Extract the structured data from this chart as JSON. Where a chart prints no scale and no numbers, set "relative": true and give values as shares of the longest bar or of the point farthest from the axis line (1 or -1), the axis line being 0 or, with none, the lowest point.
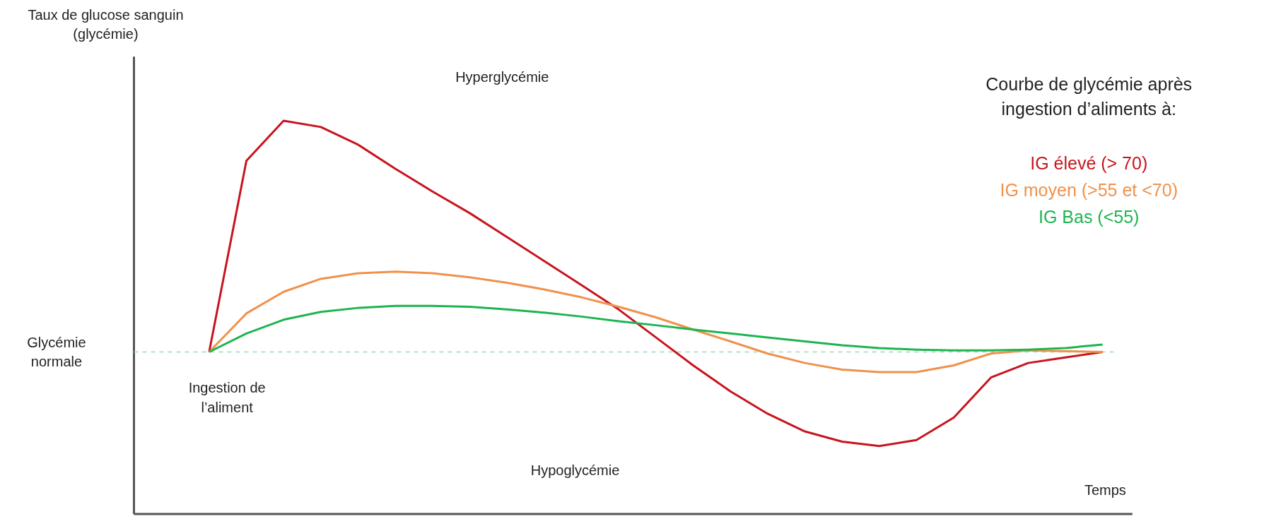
{
  "chart_data": {
    "type": "line",
    "relative": true,
    "xlabel": "Temps",
    "legend_title": "Courbe de glycémie après ingestion d’aliments à:",
    "legend": "top right",
    "grid": false,
    "marker": "none",
    "line_style": "solid",
    "categories": [
      null,
      null,
      null,
      null,
      null,
      null,
      null,
      null,
      null,
      null,
      null,
      null,
      null,
      null,
      null,
      null,
      null,
      null,
      null,
      null,
      null,
      null,
      null,
      null,
      null
    ],
    "series": [
      {
        "name": "IG élevé (> 70)",
        "color": "#c8141e",
        "values": [
          0.412,
          0.898,
          1,
          0.984,
          0.939,
          0.878,
          0.82,
          0.765,
          0.704,
          0.643,
          0.582,
          0.52,
          0.449,
          0.378,
          0.312,
          0.255,
          0.21,
          0.184,
          0.173,
          0.188,
          0.245,
          0.347,
          0.384,
          0.398,
          0.412
        ]
      },
      {
        "name": "IG moyen (>55 et <70)",
        "color": "#f0914b",
        "values": [
          0.412,
          0.51,
          0.565,
          0.598,
          0.612,
          0.616,
          0.612,
          0.602,
          0.588,
          0.571,
          0.551,
          0.527,
          0.5,
          0.469,
          0.439,
          0.408,
          0.384,
          0.367,
          0.361,
          0.361,
          0.378,
          0.408,
          0.416,
          0.414,
          0.412
        ]
      },
      {
        "name": "IG Bas (<55)",
        "color": "#1eb450",
        "values": [
          0.412,
          0.459,
          0.494,
          0.514,
          0.524,
          0.529,
          0.529,
          0.527,
          0.52,
          0.512,
          0.502,
          0.49,
          0.48,
          0.469,
          0.459,
          0.449,
          0.439,
          0.429,
          0.422,
          0.418,
          0.416,
          0.416,
          0.418,
          0.422,
          0.431
        ]
      }
    ],
    "ref_lines": [
      {
        "axis": "y",
        "value": 0.412,
        "color": "#9ed8b8",
        "line_style": "dashed"
      }
    ],
    "annotations": [
      "Taux de glucose sanguin (glycémie)",
      "Glycémie normale",
      "Hyperglycémie",
      "Ingestion de l’aliment",
      "Hypoglycémie"
    ]
  }
}
